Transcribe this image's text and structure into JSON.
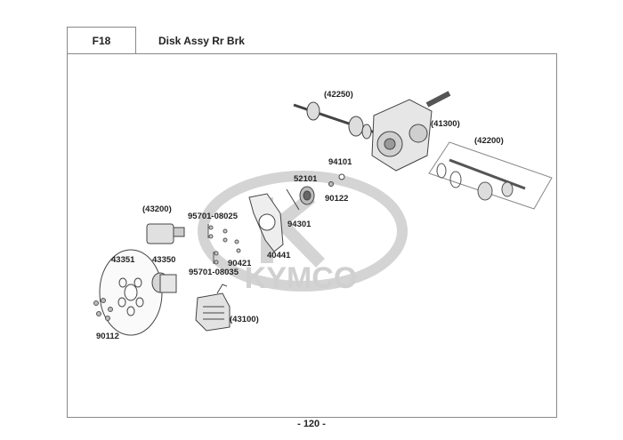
{
  "header": {
    "code": "F18",
    "title": "Disk Assy Rr Brk"
  },
  "watermark": "KYMCO",
  "parts": [
    {
      "id": "p42250",
      "label": "(42250)"
    },
    {
      "id": "p41300",
      "label": "(41300)"
    },
    {
      "id": "p42200",
      "label": "(42200)"
    },
    {
      "id": "p94101",
      "label": "94101"
    },
    {
      "id": "p52101",
      "label": "52101"
    },
    {
      "id": "p90122",
      "label": "90122"
    },
    {
      "id": "p94301",
      "label": "94301"
    },
    {
      "id": "p43200",
      "label": "(43200)"
    },
    {
      "id": "p95701a",
      "label": "95701-08025"
    },
    {
      "id": "p90421",
      "label": "90421"
    },
    {
      "id": "p40441",
      "label": "40441"
    },
    {
      "id": "p95701b",
      "label": "95701-08035"
    },
    {
      "id": "p43351",
      "label": "43351"
    },
    {
      "id": "p43350",
      "label": "43350"
    },
    {
      "id": "p90112",
      "label": "90112"
    },
    {
      "id": "p43100",
      "label": "(43100)"
    }
  ],
  "footer": {
    "page": "- 120 -"
  }
}
